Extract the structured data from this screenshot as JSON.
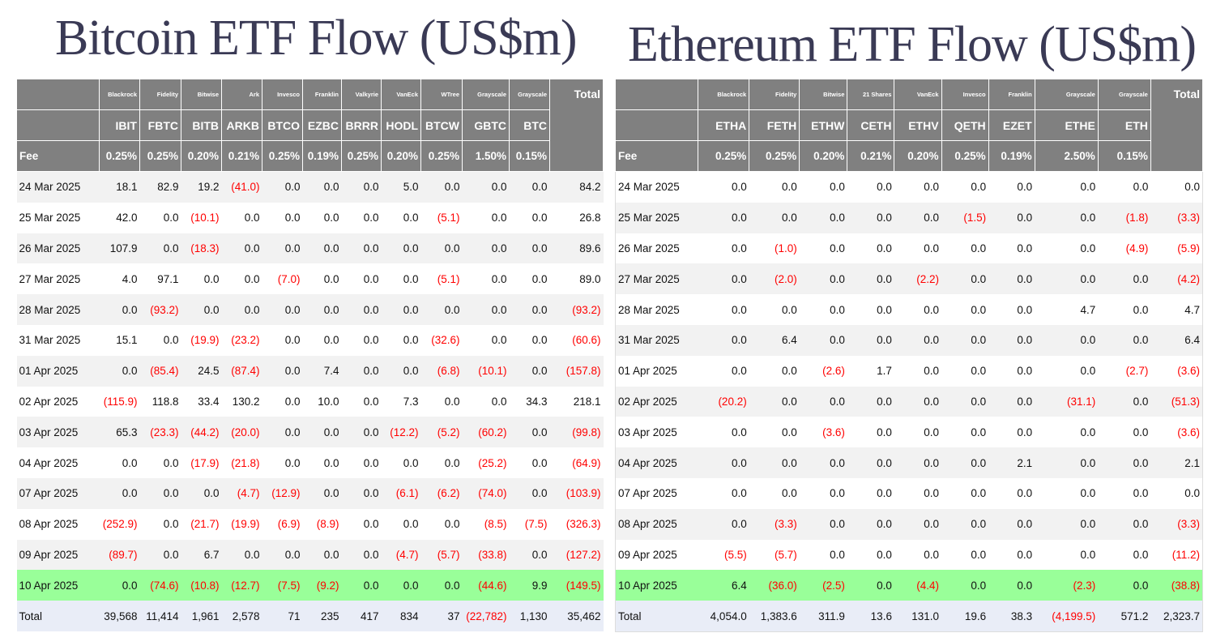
{
  "btc": {
    "title": "Bitcoin ETF Flow (US$m)",
    "issuers": [
      "Blackrock",
      "Fidelity",
      "Bitwise",
      "Ark",
      "Invesco",
      "Franklin",
      "Valkyrie",
      "VanEck",
      "WTree",
      "Grayscale",
      "Grayscale"
    ],
    "tickers": [
      "IBIT",
      "FBTC",
      "BITB",
      "ARKB",
      "BTCO",
      "EZBC",
      "BRRR",
      "HODL",
      "BTCW",
      "GBTC",
      "BTC"
    ],
    "fee_label": "Fee",
    "total_label": "Total",
    "fees": [
      "0.25%",
      "0.25%",
      "0.20%",
      "0.21%",
      "0.25%",
      "0.19%",
      "0.25%",
      "0.20%",
      "0.25%",
      "1.50%",
      "0.15%"
    ],
    "rows": [
      {
        "date": "24 Mar 2025",
        "values": [
          "18.1",
          "82.9",
          "19.2",
          "(41.0)",
          "0.0",
          "0.0",
          "0.0",
          "5.0",
          "0.0",
          "0.0",
          "0.0",
          "84.2"
        ]
      },
      {
        "date": "25 Mar 2025",
        "values": [
          "42.0",
          "0.0",
          "(10.1)",
          "0.0",
          "0.0",
          "0.0",
          "0.0",
          "0.0",
          "(5.1)",
          "0.0",
          "0.0",
          "26.8"
        ]
      },
      {
        "date": "26 Mar 2025",
        "values": [
          "107.9",
          "0.0",
          "(18.3)",
          "0.0",
          "0.0",
          "0.0",
          "0.0",
          "0.0",
          "0.0",
          "0.0",
          "0.0",
          "89.6"
        ]
      },
      {
        "date": "27 Mar 2025",
        "values": [
          "4.0",
          "97.1",
          "0.0",
          "0.0",
          "(7.0)",
          "0.0",
          "0.0",
          "0.0",
          "(5.1)",
          "0.0",
          "0.0",
          "89.0"
        ]
      },
      {
        "date": "28 Mar 2025",
        "values": [
          "0.0",
          "(93.2)",
          "0.0",
          "0.0",
          "0.0",
          "0.0",
          "0.0",
          "0.0",
          "0.0",
          "0.0",
          "0.0",
          "(93.2)"
        ]
      },
      {
        "date": "31 Mar 2025",
        "values": [
          "15.1",
          "0.0",
          "(19.9)",
          "(23.2)",
          "0.0",
          "0.0",
          "0.0",
          "0.0",
          "(32.6)",
          "0.0",
          "0.0",
          "(60.6)"
        ]
      },
      {
        "date": "01 Apr 2025",
        "values": [
          "0.0",
          "(85.4)",
          "24.5",
          "(87.4)",
          "0.0",
          "7.4",
          "0.0",
          "0.0",
          "(6.8)",
          "(10.1)",
          "0.0",
          "(157.8)"
        ]
      },
      {
        "date": "02 Apr 2025",
        "values": [
          "(115.9)",
          "118.8",
          "33.4",
          "130.2",
          "0.0",
          "10.0",
          "0.0",
          "7.3",
          "0.0",
          "0.0",
          "34.3",
          "218.1"
        ]
      },
      {
        "date": "03 Apr 2025",
        "values": [
          "65.3",
          "(23.3)",
          "(44.2)",
          "(20.0)",
          "0.0",
          "0.0",
          "0.0",
          "(12.2)",
          "(5.2)",
          "(60.2)",
          "0.0",
          "(99.8)"
        ]
      },
      {
        "date": "04 Apr 2025",
        "values": [
          "0.0",
          "0.0",
          "(17.9)",
          "(21.8)",
          "0.0",
          "0.0",
          "0.0",
          "0.0",
          "0.0",
          "(25.2)",
          "0.0",
          "(64.9)"
        ]
      },
      {
        "date": "07 Apr 2025",
        "values": [
          "0.0",
          "0.0",
          "0.0",
          "(4.7)",
          "(12.9)",
          "0.0",
          "0.0",
          "(6.1)",
          "(6.2)",
          "(74.0)",
          "0.0",
          "(103.9)"
        ]
      },
      {
        "date": "08 Apr 2025",
        "values": [
          "(252.9)",
          "0.0",
          "(21.7)",
          "(19.9)",
          "(6.9)",
          "(8.9)",
          "0.0",
          "0.0",
          "0.0",
          "(8.5)",
          "(7.5)",
          "(326.3)"
        ]
      },
      {
        "date": "09 Apr 2025",
        "values": [
          "(89.7)",
          "0.0",
          "6.7",
          "0.0",
          "0.0",
          "0.0",
          "0.0",
          "(4.7)",
          "(5.7)",
          "(33.8)",
          "0.0",
          "(127.2)"
        ]
      },
      {
        "date": "10 Apr 2025",
        "values": [
          "0.0",
          "(74.6)",
          "(10.8)",
          "(12.7)",
          "(7.5)",
          "(9.2)",
          "0.0",
          "0.0",
          "0.0",
          "(44.6)",
          "9.9",
          "(149.5)"
        ]
      }
    ],
    "totals": {
      "date": "Total",
      "values": [
        "39,568",
        "11,414",
        "1,961",
        "2,578",
        "71",
        "235",
        "417",
        "834",
        "37",
        "(22,782)",
        "1,130",
        "35,462"
      ]
    }
  },
  "eth": {
    "title": "Ethereum ETF Flow (US$m)",
    "issuers": [
      "Blackrock",
      "Fidelity",
      "Bitwise",
      "21 Shares",
      "VanEck",
      "Invesco",
      "Franklin",
      "Grayscale",
      "Grayscale"
    ],
    "tickers": [
      "ETHA",
      "FETH",
      "ETHW",
      "CETH",
      "ETHV",
      "QETH",
      "EZET",
      "ETHE",
      "ETH"
    ],
    "fee_label": "Fee",
    "total_label": "Total",
    "fees": [
      "0.25%",
      "0.25%",
      "0.20%",
      "0.21%",
      "0.20%",
      "0.25%",
      "0.19%",
      "2.50%",
      "0.15%"
    ],
    "rows": [
      {
        "date": "24 Mar 2025",
        "values": [
          "0.0",
          "0.0",
          "0.0",
          "0.0",
          "0.0",
          "0.0",
          "0.0",
          "0.0",
          "0.0",
          "0.0"
        ]
      },
      {
        "date": "25 Mar 2025",
        "values": [
          "0.0",
          "0.0",
          "0.0",
          "0.0",
          "0.0",
          "(1.5)",
          "0.0",
          "0.0",
          "(1.8)",
          "(3.3)"
        ]
      },
      {
        "date": "26 Mar 2025",
        "values": [
          "0.0",
          "(1.0)",
          "0.0",
          "0.0",
          "0.0",
          "0.0",
          "0.0",
          "0.0",
          "(4.9)",
          "(5.9)"
        ]
      },
      {
        "date": "27 Mar 2025",
        "values": [
          "0.0",
          "(2.0)",
          "0.0",
          "0.0",
          "(2.2)",
          "0.0",
          "0.0",
          "0.0",
          "0.0",
          "(4.2)"
        ]
      },
      {
        "date": "28 Mar 2025",
        "values": [
          "0.0",
          "0.0",
          "0.0",
          "0.0",
          "0.0",
          "0.0",
          "0.0",
          "4.7",
          "0.0",
          "4.7"
        ]
      },
      {
        "date": "31 Mar 2025",
        "values": [
          "0.0",
          "6.4",
          "0.0",
          "0.0",
          "0.0",
          "0.0",
          "0.0",
          "0.0",
          "0.0",
          "6.4"
        ]
      },
      {
        "date": "01 Apr 2025",
        "values": [
          "0.0",
          "0.0",
          "(2.6)",
          "1.7",
          "0.0",
          "0.0",
          "0.0",
          "0.0",
          "(2.7)",
          "(3.6)"
        ]
      },
      {
        "date": "02 Apr 2025",
        "values": [
          "(20.2)",
          "0.0",
          "0.0",
          "0.0",
          "0.0",
          "0.0",
          "0.0",
          "(31.1)",
          "0.0",
          "(51.3)"
        ]
      },
      {
        "date": "03 Apr 2025",
        "values": [
          "0.0",
          "0.0",
          "(3.6)",
          "0.0",
          "0.0",
          "0.0",
          "0.0",
          "0.0",
          "0.0",
          "(3.6)"
        ]
      },
      {
        "date": "04 Apr 2025",
        "values": [
          "0.0",
          "0.0",
          "0.0",
          "0.0",
          "0.0",
          "0.0",
          "2.1",
          "0.0",
          "0.0",
          "2.1"
        ]
      },
      {
        "date": "07 Apr 2025",
        "values": [
          "0.0",
          "0.0",
          "0.0",
          "0.0",
          "0.0",
          "0.0",
          "0.0",
          "0.0",
          "0.0",
          "0.0"
        ]
      },
      {
        "date": "08 Apr 2025",
        "values": [
          "0.0",
          "(3.3)",
          "0.0",
          "0.0",
          "0.0",
          "0.0",
          "0.0",
          "0.0",
          "0.0",
          "(3.3)"
        ]
      },
      {
        "date": "09 Apr 2025",
        "values": [
          "(5.5)",
          "(5.7)",
          "0.0",
          "0.0",
          "0.0",
          "0.0",
          "0.0",
          "0.0",
          "0.0",
          "(11.2)"
        ]
      },
      {
        "date": "10 Apr 2025",
        "values": [
          "6.4",
          "(36.0)",
          "(2.5)",
          "0.0",
          "(4.4)",
          "0.0",
          "0.0",
          "(2.3)",
          "0.0",
          "(38.8)"
        ]
      }
    ],
    "totals": {
      "date": "Total",
      "values": [
        "4,054.0",
        "1,383.6",
        "311.9",
        "13.6",
        "131.0",
        "19.6",
        "38.3",
        "(4,199.5)",
        "571.2",
        "2,323.7"
      ]
    }
  }
}
